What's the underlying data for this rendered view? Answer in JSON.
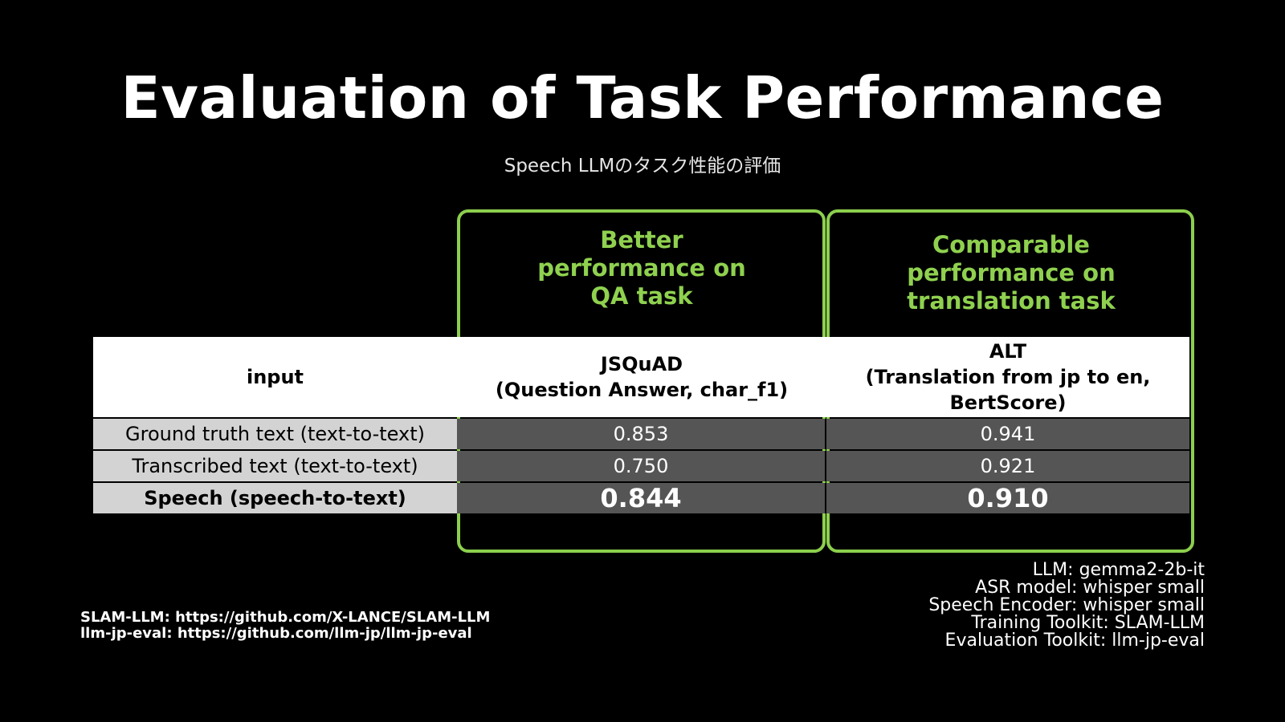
{
  "slide": {
    "title": "Evaluation of Task Performance",
    "subtitle": "Speech LLMのタスク性能の評価"
  },
  "highlights": [
    {
      "lines": [
        "Better",
        "performance on",
        "QA task"
      ]
    },
    {
      "lines": [
        "Comparable",
        "performance on",
        "translation task"
      ]
    }
  ],
  "table": {
    "header": {
      "input": "input",
      "qa": [
        "JSQuAD",
        "(Question Answer, char_f1)"
      ],
      "translation": [
        "ALT",
        "(Translation from jp to en,",
        "BertScore)"
      ]
    },
    "rows": [
      {
        "input": "Ground truth text (text-to-text)",
        "qa": "0.853",
        "translation": "0.941"
      },
      {
        "input": "Transcribed text (text-to-text)",
        "qa": "0.750",
        "translation": "0.921"
      },
      {
        "input": "Speech (speech-to-text)",
        "qa": "0.844",
        "translation": "0.910"
      }
    ]
  },
  "references": [
    "SLAM-LLM: https://github.com/X-LANCE/SLAM-LLM",
    "llm-jp-eval: https://github.com/llm-jp/llm-jp-eval"
  ],
  "config": [
    "LLM: gemma2-2b-it",
    "ASR model: whisper small",
    "Speech Encoder: whisper small",
    "Training Toolkit: SLAM-LLM",
    "Evaluation Toolkit: llm-jp-eval"
  ],
  "colors": {
    "background": "#000000",
    "accent_green": "#8fd14f",
    "input_cell": "#d3d3d3",
    "value_cell": "#555555"
  }
}
